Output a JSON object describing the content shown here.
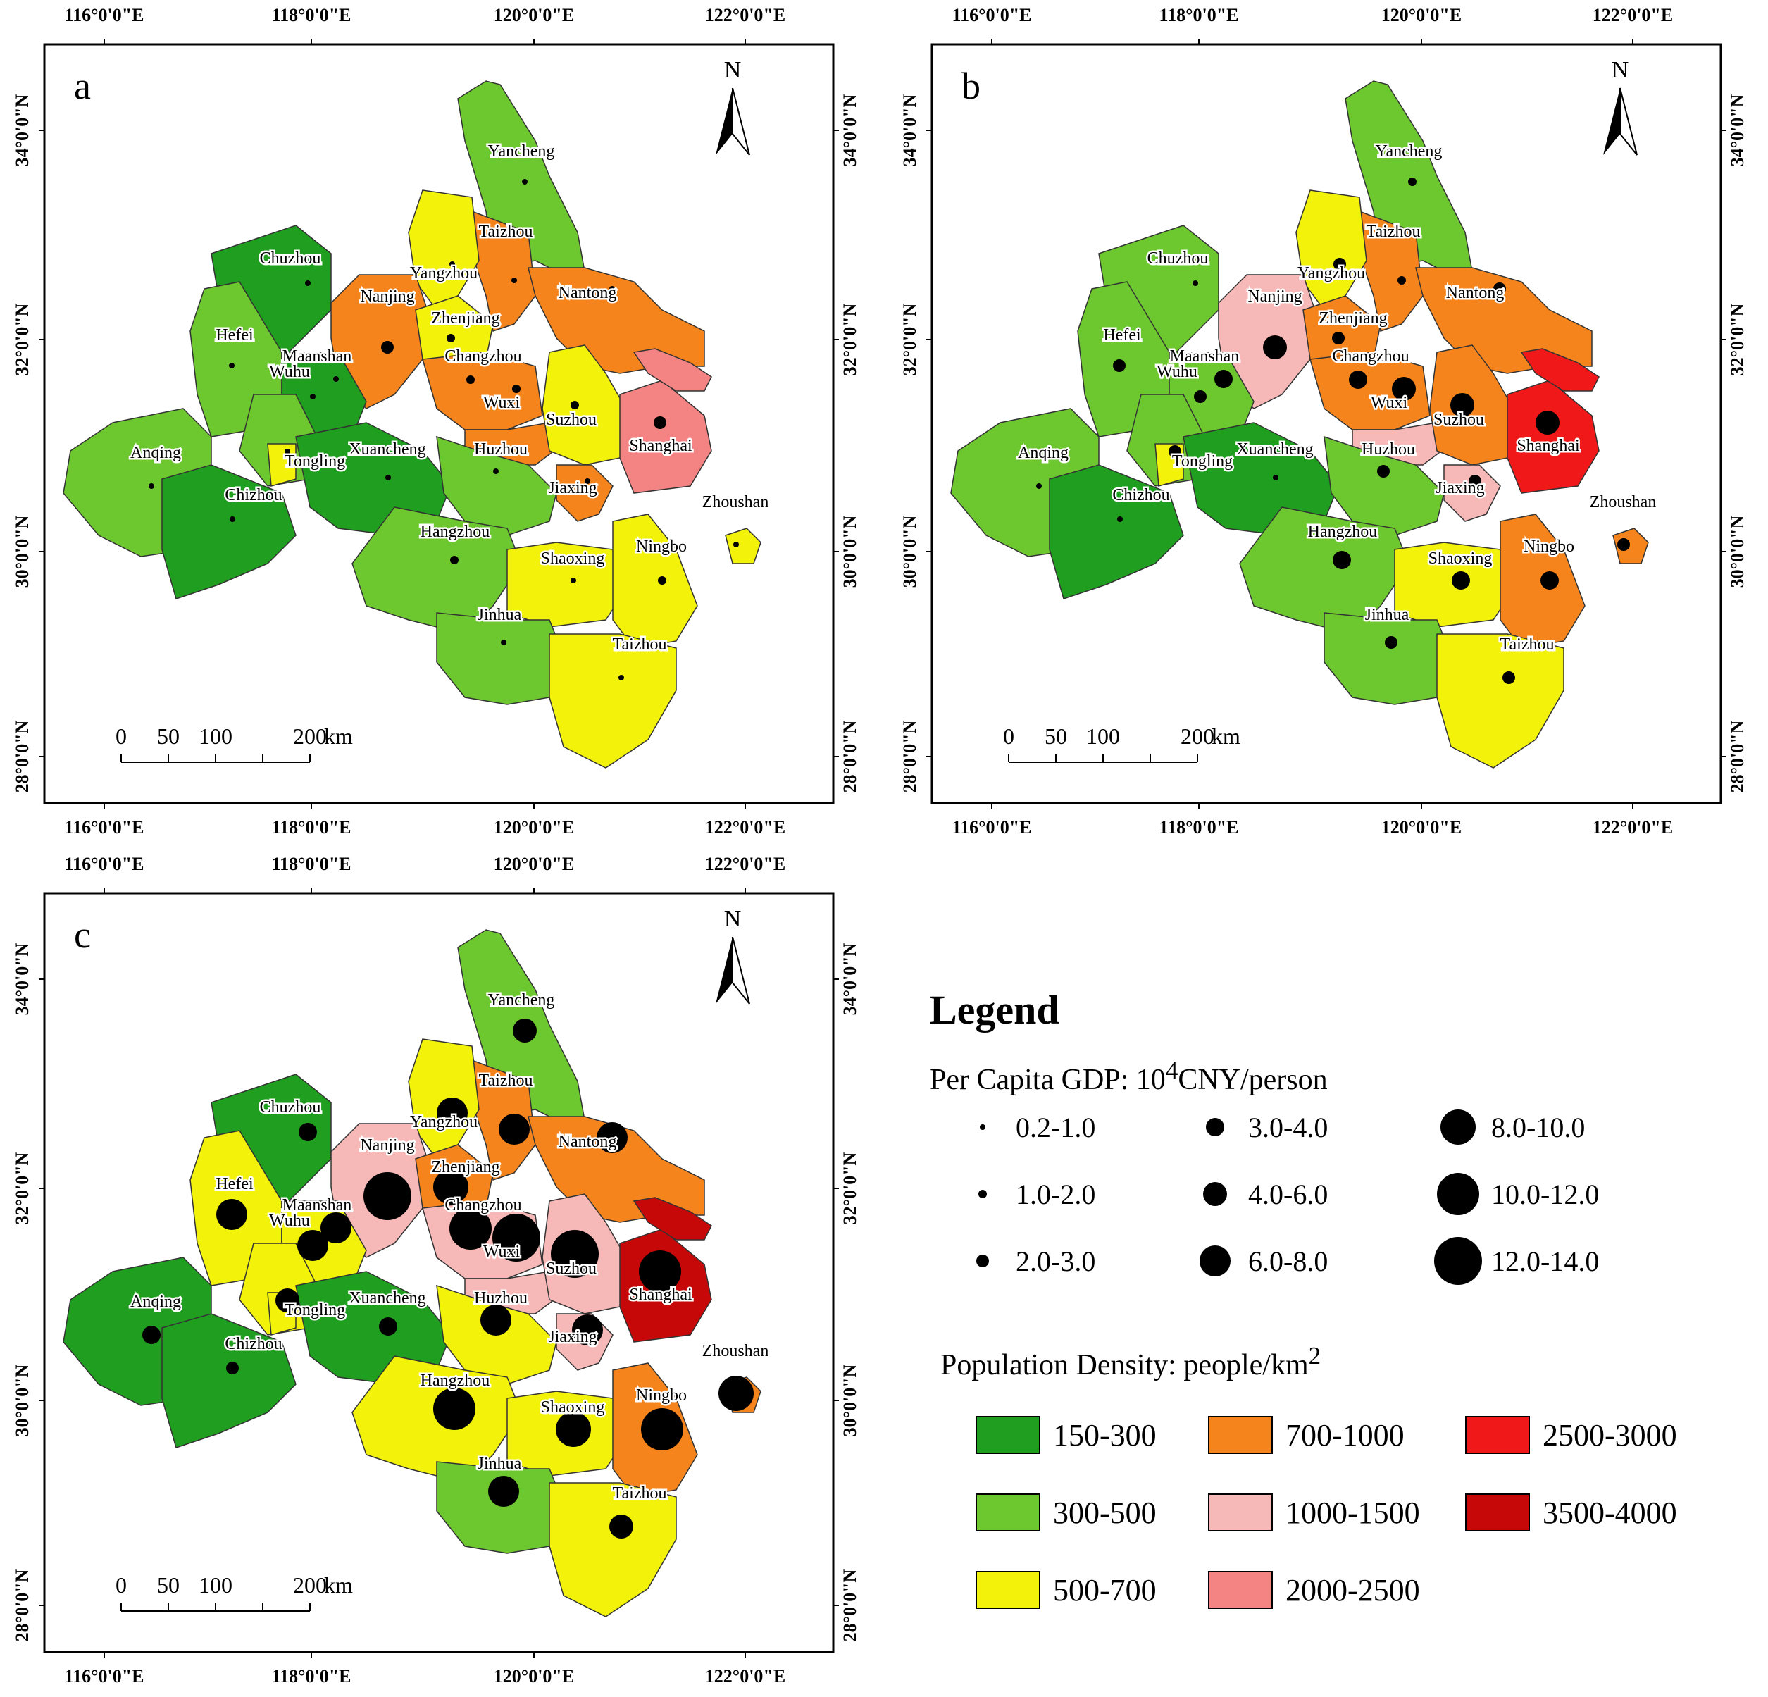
{
  "panels": [
    {
      "label": "a",
      "cities": [
        {
          "name": "Yancheng",
          "density": "300-500",
          "gdp": "0.2-1.0"
        },
        {
          "name": "Taizhou",
          "density": "700-1000",
          "gdp": "0.2-1.0"
        },
        {
          "name": "Chuzhou",
          "density": "150-300",
          "gdp": "0.2-1.0"
        },
        {
          "name": "Yangzhou",
          "density": "500-700",
          "gdp": "0.2-1.0"
        },
        {
          "name": "Nantong",
          "density": "700-1000",
          "gdp": "0.2-1.0"
        },
        {
          "name": "Nanjing",
          "density": "700-1000",
          "gdp": "2.0-3.0"
        },
        {
          "name": "Zhenjiang",
          "density": "500-700",
          "gdp": "1.0-2.0"
        },
        {
          "name": "Hefei",
          "density": "300-500",
          "gdp": "0.2-1.0"
        },
        {
          "name": "Maanshan",
          "density": "150-300",
          "gdp": "0.2-1.0"
        },
        {
          "name": "Changzhou",
          "density": "700-1000",
          "gdp": "1.0-2.0"
        },
        {
          "name": "Wuxi",
          "density": "700-1000",
          "gdp": "1.0-2.0"
        },
        {
          "name": "Suzhou",
          "density": "500-700",
          "gdp": "1.0-2.0"
        },
        {
          "name": "Shanghai",
          "density": "2000-2500",
          "gdp": "2.0-3.0"
        },
        {
          "name": "Wuhu",
          "density": "300-500",
          "gdp": "0.2-1.0"
        },
        {
          "name": "Anqing",
          "density": "300-500",
          "gdp": "0.2-1.0"
        },
        {
          "name": "Tongling",
          "density": "500-700",
          "gdp": "0.2-1.0"
        },
        {
          "name": "Xuancheng",
          "density": "150-300",
          "gdp": "0.2-1.0"
        },
        {
          "name": "Huzhou",
          "density": "300-500",
          "gdp": "0.2-1.0"
        },
        {
          "name": "Jiaxing",
          "density": "700-1000",
          "gdp": "0.2-1.0"
        },
        {
          "name": "Chizhou",
          "density": "150-300",
          "gdp": "0.2-1.0"
        },
        {
          "name": "Zhoushan",
          "density": "500-700",
          "gdp": "0.2-1.0"
        },
        {
          "name": "Hangzhou",
          "density": "300-500",
          "gdp": "1.0-2.0"
        },
        {
          "name": "Shaoxing",
          "density": "500-700",
          "gdp": "0.2-1.0"
        },
        {
          "name": "Ningbo",
          "density": "500-700",
          "gdp": "1.0-2.0"
        },
        {
          "name": "Jinhua",
          "density": "300-500",
          "gdp": "0.2-1.0"
        },
        {
          "name": "Taizhou",
          "density": "500-700",
          "gdp": "0.2-1.0"
        }
      ]
    },
    {
      "label": "b",
      "cities": [
        {
          "name": "Yancheng",
          "density": "300-500",
          "gdp": "1.0-2.0"
        },
        {
          "name": "Taizhou",
          "density": "700-1000",
          "gdp": "1.0-2.0"
        },
        {
          "name": "Chuzhou",
          "density": "300-500",
          "gdp": "0.2-1.0"
        },
        {
          "name": "Yangzhou",
          "density": "500-700",
          "gdp": "2.0-3.0"
        },
        {
          "name": "Nantong",
          "density": "700-1000",
          "gdp": "2.0-3.0"
        },
        {
          "name": "Nanjing",
          "density": "1000-1500",
          "gdp": "4.0-6.0"
        },
        {
          "name": "Zhenjiang",
          "density": "700-1000",
          "gdp": "2.0-3.0"
        },
        {
          "name": "Hefei",
          "density": "300-500",
          "gdp": "2.0-3.0"
        },
        {
          "name": "Maanshan",
          "density": "300-500",
          "gdp": "3.0-4.0"
        },
        {
          "name": "Changzhou",
          "density": "700-1000",
          "gdp": "3.0-4.0"
        },
        {
          "name": "Wuxi",
          "density": "1000-1500",
          "gdp": "4.0-6.0"
        },
        {
          "name": "Suzhou",
          "density": "700-1000",
          "gdp": "4.0-6.0"
        },
        {
          "name": "Shanghai",
          "density": "2500-3000",
          "gdp": "4.0-6.0"
        },
        {
          "name": "Wuhu",
          "density": "300-500",
          "gdp": "2.0-3.0"
        },
        {
          "name": "Anqing",
          "density": "300-500",
          "gdp": "0.2-1.0"
        },
        {
          "name": "Tongling",
          "density": "500-700",
          "gdp": "2.0-3.0"
        },
        {
          "name": "Xuancheng",
          "density": "150-300",
          "gdp": "0.2-1.0"
        },
        {
          "name": "Huzhou",
          "density": "300-500",
          "gdp": "2.0-3.0"
        },
        {
          "name": "Jiaxing",
          "density": "1000-1500",
          "gdp": "2.0-3.0"
        },
        {
          "name": "Chizhou",
          "density": "150-300",
          "gdp": "0.2-1.0"
        },
        {
          "name": "Zhoushan",
          "density": "700-1000",
          "gdp": "2.0-3.0"
        },
        {
          "name": "Hangzhou",
          "density": "300-500",
          "gdp": "3.0-4.0"
        },
        {
          "name": "Shaoxing",
          "density": "500-700",
          "gdp": "3.0-4.0"
        },
        {
          "name": "Ningbo",
          "density": "700-1000",
          "gdp": "3.0-4.0"
        },
        {
          "name": "Jinhua",
          "density": "300-500",
          "gdp": "2.0-3.0"
        },
        {
          "name": "Taizhou",
          "density": "500-700",
          "gdp": "2.0-3.0"
        }
      ]
    },
    {
      "label": "c",
      "cities": [
        {
          "name": "Yancheng",
          "density": "300-500",
          "gdp": "4.0-6.0"
        },
        {
          "name": "Taizhou",
          "density": "700-1000",
          "gdp": "6.0-8.0"
        },
        {
          "name": "Chuzhou",
          "density": "150-300",
          "gdp": "3.0-4.0"
        },
        {
          "name": "Yangzhou",
          "density": "500-700",
          "gdp": "6.0-8.0"
        },
        {
          "name": "Nantong",
          "density": "700-1000",
          "gdp": "6.0-8.0"
        },
        {
          "name": "Nanjing",
          "density": "1000-1500",
          "gdp": "12.0-14.0"
        },
        {
          "name": "Zhenjiang",
          "density": "700-1000",
          "gdp": "8.0-10.0"
        },
        {
          "name": "Hefei",
          "density": "500-700",
          "gdp": "6.0-8.0"
        },
        {
          "name": "Maanshan",
          "density": "500-700",
          "gdp": "6.0-8.0"
        },
        {
          "name": "Changzhou",
          "density": "1000-1500",
          "gdp": "10.0-12.0"
        },
        {
          "name": "Wuxi",
          "density": "1000-1500",
          "gdp": "12.0-14.0"
        },
        {
          "name": "Suzhou",
          "density": "1000-1500",
          "gdp": "12.0-14.0"
        },
        {
          "name": "Shanghai",
          "density": "3500-4000",
          "gdp": "10.0-12.0"
        },
        {
          "name": "Wuhu",
          "density": "500-700",
          "gdp": "6.0-8.0"
        },
        {
          "name": "Anqing",
          "density": "150-300",
          "gdp": "3.0-4.0"
        },
        {
          "name": "Tongling",
          "density": "500-700",
          "gdp": "4.0-6.0"
        },
        {
          "name": "Xuancheng",
          "density": "150-300",
          "gdp": "3.0-4.0"
        },
        {
          "name": "Huzhou",
          "density": "500-700",
          "gdp": "6.0-8.0"
        },
        {
          "name": "Jiaxing",
          "density": "1000-1500",
          "gdp": "6.0-8.0"
        },
        {
          "name": "Chizhou",
          "density": "150-300",
          "gdp": "2.0-3.0"
        },
        {
          "name": "Zhoushan",
          "density": "700-1000",
          "gdp": "8.0-10.0"
        },
        {
          "name": "Hangzhou",
          "density": "500-700",
          "gdp": "10.0-12.0"
        },
        {
          "name": "Shaoxing",
          "density": "500-700",
          "gdp": "8.0-10.0"
        },
        {
          "name": "Ningbo",
          "density": "700-1000",
          "gdp": "10.0-12.0"
        },
        {
          "name": "Jinhua",
          "density": "300-500",
          "gdp": "6.0-8.0"
        },
        {
          "name": "Taizhou",
          "density": "500-700",
          "gdp": "4.0-6.0"
        }
      ]
    }
  ],
  "axes": {
    "lon_labels": [
      "116°0'0\"E",
      "118°0'0\"E",
      "120°0'0\"E",
      "122°0'0\"E"
    ],
    "lat_labels": [
      "34°0'0\"N",
      "32°0'0\"N",
      "30°0'0\"N",
      "28°0'0\"N"
    ]
  },
  "north_label": "N",
  "scalebar": {
    "ticks": [
      "0",
      "50",
      "100",
      "200"
    ],
    "unit": "km"
  },
  "legend": {
    "title": "Legend",
    "gdp_title_pre": "Per Capita GDP: 10",
    "gdp_title_sup": "4",
    "gdp_title_post": "CNY/person",
    "gdp_classes": [
      "0.2-1.0",
      "1.0-2.0",
      "2.0-3.0",
      "3.0-4.0",
      "4.0-6.0",
      "6.0-8.0",
      "8.0-10.0",
      "10.0-12.0",
      "12.0-14.0"
    ],
    "pd_title_pre": "Population Density: people/km",
    "pd_title_sup": "2",
    "pd_classes": [
      {
        "label": "150-300",
        "color": "#1f9e1f"
      },
      {
        "label": "300-500",
        "color": "#6cc82e"
      },
      {
        "label": "500-700",
        "color": "#f2f20a"
      },
      {
        "label": "700-1000",
        "color": "#f6841c"
      },
      {
        "label": "1000-1500",
        "color": "#f7b8b8"
      },
      {
        "label": "2000-2500",
        "color": "#f48484"
      },
      {
        "label": "2500-3000",
        "color": "#f01818"
      },
      {
        "label": "3500-4000",
        "color": "#c60808"
      }
    ]
  }
}
